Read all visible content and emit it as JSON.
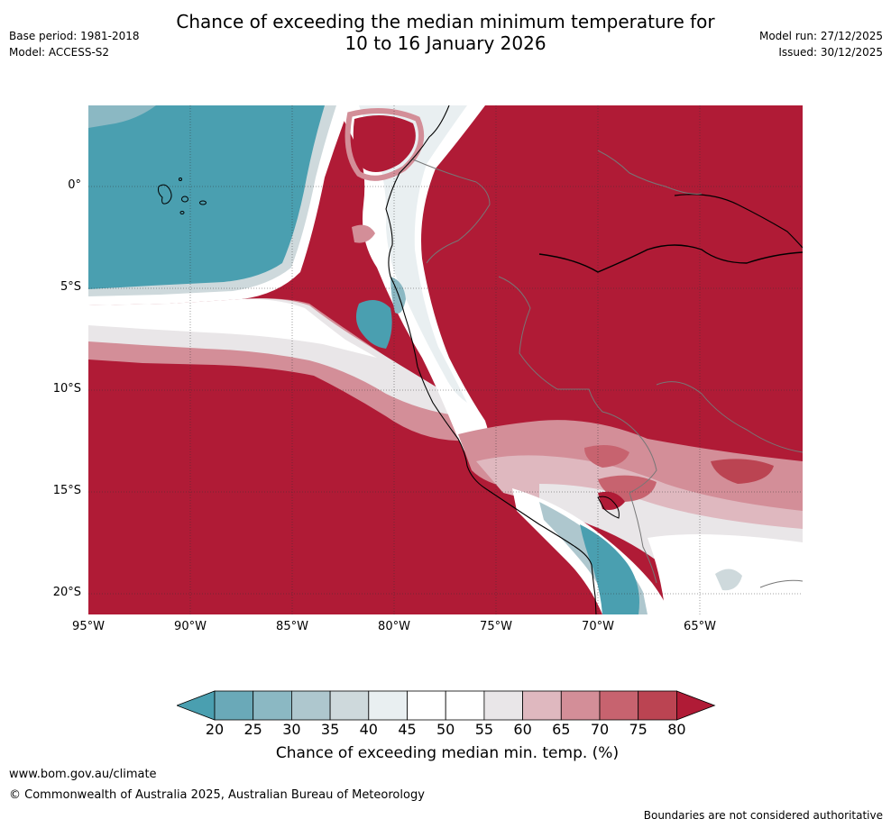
{
  "header": {
    "title_line1": "Chance of exceeding the median minimum temperature for",
    "title_line2": "10 to 16 January 2026",
    "base_period": "Base period: 1981-2018",
    "model": "Model: ACCESS-S2",
    "model_run": "Model run: 27/12/2025",
    "issued": "Issued: 30/12/2025"
  },
  "map": {
    "lat_labels": [
      "0°",
      "5°S",
      "10°S",
      "15°S",
      "20°S"
    ],
    "lon_labels": [
      "95°W",
      "90°W",
      "85°W",
      "80°W",
      "75°W",
      "70°W",
      "65°W"
    ]
  },
  "colorbar": {
    "ticks": [
      "20",
      "25",
      "30",
      "35",
      "40",
      "45",
      "50",
      "55",
      "60",
      "65",
      "70",
      "75",
      "80"
    ],
    "colors": [
      "#4a9fb0",
      "#6aa9b8",
      "#8bb8c3",
      "#aec7ce",
      "#ced9dc",
      "#e9eff1",
      "#ffffff",
      "#ffffff",
      "#e9e6e8",
      "#dfb8bf",
      "#d38e98",
      "#c7636f",
      "#bb4452",
      "#b01b36"
    ],
    "label": "Chance of exceeding median min. temp. (%)"
  },
  "footer": {
    "website": "www.bom.gov.au/climate",
    "copyright": "© Commonwealth of Australia 2025, Australian Bureau of Meteorology",
    "disclaimer": "Boundaries are not considered authoritative"
  }
}
